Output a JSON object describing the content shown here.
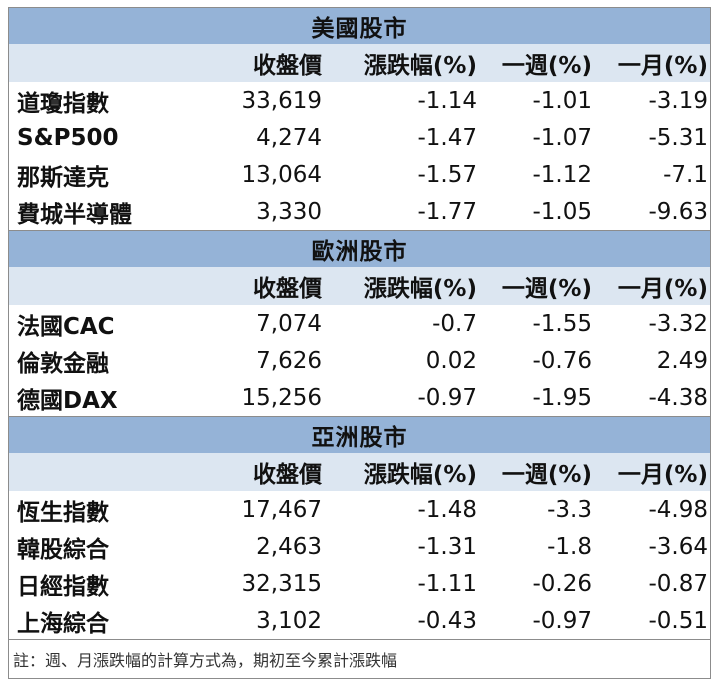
{
  "colors": {
    "section_title_bg": "#95b3d7",
    "header_row_bg": "#dce6f1",
    "border": "#8c8c8c"
  },
  "columns": {
    "name": "",
    "close": "收盤價",
    "change": "漲跌幅(%)",
    "week": "一週(%)",
    "month": "一月(%)"
  },
  "sections": [
    {
      "title": "美國股市",
      "rows": [
        {
          "name": "道瓊指數",
          "close": "33,619",
          "change": "-1.14",
          "week": "-1.01",
          "month": "-3.19"
        },
        {
          "name": "S&P500",
          "close": "4,274",
          "change": "-1.47",
          "week": "-1.07",
          "month": "-5.31"
        },
        {
          "name": "那斯達克",
          "close": "13,064",
          "change": "-1.57",
          "week": "-1.12",
          "month": "-7.1"
        },
        {
          "name": "費城半導體",
          "close": "3,330",
          "change": "-1.77",
          "week": "-1.05",
          "month": "-9.63"
        }
      ]
    },
    {
      "title": "歐洲股市",
      "rows": [
        {
          "name": "法國CAC",
          "close": "7,074",
          "change": "-0.7",
          "week": "-1.55",
          "month": "-3.32"
        },
        {
          "name": "倫敦金融",
          "close": "7,626",
          "change": "0.02",
          "week": "-0.76",
          "month": "2.49"
        },
        {
          "name": "德國DAX",
          "close": "15,256",
          "change": "-0.97",
          "week": "-1.95",
          "month": "-4.38"
        }
      ]
    },
    {
      "title": "亞洲股市",
      "rows": [
        {
          "name": "恆生指數",
          "close": "17,467",
          "change": "-1.48",
          "week": "-3.3",
          "month": "-4.98"
        },
        {
          "name": "韓股綜合",
          "close": "2,463",
          "change": "-1.31",
          "week": "-1.8",
          "month": "-3.64"
        },
        {
          "name": "日經指數",
          "close": "32,315",
          "change": "-1.11",
          "week": "-0.26",
          "month": "-0.87"
        },
        {
          "name": "上海綜合",
          "close": "3,102",
          "change": "-0.43",
          "week": "-0.97",
          "month": "-0.51"
        }
      ]
    }
  ],
  "note": "註：週、月漲跌幅的計算方式為，期初至今累計漲跌幅"
}
